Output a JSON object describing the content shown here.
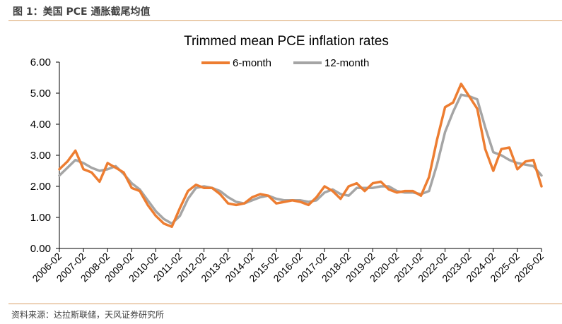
{
  "header": {
    "figure_label": "图 1：美国 PCE 通胀截尾均值"
  },
  "footer": {
    "source": "资料来源：达拉斯联储，天风证券研究所"
  },
  "chart_data": {
    "type": "line",
    "title": "Trimmed mean PCE inflation rates",
    "xlabel": "",
    "ylabel": "",
    "ylim": [
      0,
      6
    ],
    "yticks": [
      "0.00",
      "1.00",
      "2.00",
      "3.00",
      "4.00",
      "5.00",
      "6.00"
    ],
    "x_tick_labels": [
      "2006-02",
      "2007-02",
      "2008-02",
      "2009-02",
      "2010-02",
      "2011-02",
      "2012-02",
      "2013-02",
      "2014-02",
      "2015-02",
      "2016-02",
      "2017-02",
      "2018-02",
      "2019-02",
      "2020-02",
      "2021-02",
      "2022-02",
      "2023-02",
      "2024-02",
      "2025-02",
      "2026-02"
    ],
    "grid": false,
    "legend_position": "top",
    "colors": {
      "6-month": "#ED7D31",
      "12-month": "#A5A5A5"
    },
    "series": [
      {
        "name": "6-month",
        "x": [
          "2006-02",
          "2006-06",
          "2006-10",
          "2007-02",
          "2007-06",
          "2007-10",
          "2008-02",
          "2008-06",
          "2008-10",
          "2009-02",
          "2009-06",
          "2009-10",
          "2010-02",
          "2010-06",
          "2010-10",
          "2011-02",
          "2011-06",
          "2011-10",
          "2012-02",
          "2012-06",
          "2012-10",
          "2013-02",
          "2013-06",
          "2013-10",
          "2014-02",
          "2014-06",
          "2014-10",
          "2015-02",
          "2015-06",
          "2015-10",
          "2016-02",
          "2016-06",
          "2016-10",
          "2017-02",
          "2017-06",
          "2017-10",
          "2018-02",
          "2018-06",
          "2018-10",
          "2019-02",
          "2019-06",
          "2019-10",
          "2020-02",
          "2020-06",
          "2020-10",
          "2021-02",
          "2021-06",
          "2021-10",
          "2022-02",
          "2022-06",
          "2022-10",
          "2023-02",
          "2023-06",
          "2023-10",
          "2024-02",
          "2024-06",
          "2024-10",
          "2025-02",
          "2025-06",
          "2025-10",
          "2026-02"
        ],
        "values": [
          2.55,
          2.8,
          3.15,
          2.55,
          2.45,
          2.15,
          2.75,
          2.6,
          2.45,
          1.95,
          1.85,
          1.4,
          1.05,
          0.8,
          0.7,
          1.3,
          1.85,
          2.05,
          1.95,
          1.95,
          1.75,
          1.45,
          1.4,
          1.45,
          1.65,
          1.75,
          1.7,
          1.45,
          1.5,
          1.55,
          1.5,
          1.4,
          1.65,
          2.0,
          1.85,
          1.6,
          2.0,
          2.1,
          1.85,
          2.1,
          2.15,
          1.9,
          1.8,
          1.85,
          1.85,
          1.7,
          2.3,
          3.5,
          4.55,
          4.7,
          5.3,
          4.9,
          4.5,
          3.2,
          2.5,
          3.2,
          3.25,
          2.55,
          2.8,
          2.85,
          2.0
        ]
      },
      {
        "name": "12-month",
        "x": [
          "2006-02",
          "2006-06",
          "2006-10",
          "2007-02",
          "2007-06",
          "2007-10",
          "2008-02",
          "2008-06",
          "2008-10",
          "2009-02",
          "2009-06",
          "2009-10",
          "2010-02",
          "2010-06",
          "2010-10",
          "2011-02",
          "2011-06",
          "2011-10",
          "2012-02",
          "2012-06",
          "2012-10",
          "2013-02",
          "2013-06",
          "2013-10",
          "2014-02",
          "2014-06",
          "2014-10",
          "2015-02",
          "2015-06",
          "2015-10",
          "2016-02",
          "2016-06",
          "2016-10",
          "2017-02",
          "2017-06",
          "2017-10",
          "2018-02",
          "2018-06",
          "2018-10",
          "2019-02",
          "2019-06",
          "2019-10",
          "2020-02",
          "2020-06",
          "2020-10",
          "2021-02",
          "2021-06",
          "2021-10",
          "2022-02",
          "2022-06",
          "2022-10",
          "2023-02",
          "2023-06",
          "2023-10",
          "2024-02",
          "2024-06",
          "2024-10",
          "2025-02",
          "2025-06",
          "2025-10",
          "2026-02"
        ],
        "values": [
          2.35,
          2.6,
          2.85,
          2.75,
          2.6,
          2.5,
          2.55,
          2.65,
          2.4,
          2.1,
          1.9,
          1.55,
          1.2,
          0.95,
          0.8,
          1.05,
          1.6,
          1.95,
          2.0,
          1.95,
          1.85,
          1.65,
          1.5,
          1.45,
          1.55,
          1.65,
          1.7,
          1.6,
          1.55,
          1.55,
          1.55,
          1.5,
          1.55,
          1.8,
          1.9,
          1.75,
          1.7,
          1.95,
          1.95,
          1.95,
          2.0,
          2.0,
          1.85,
          1.8,
          1.8,
          1.75,
          1.85,
          2.7,
          3.75,
          4.4,
          4.95,
          4.9,
          4.8,
          3.9,
          3.1,
          3.0,
          2.85,
          2.75,
          2.7,
          2.65,
          2.35
        ]
      }
    ]
  }
}
